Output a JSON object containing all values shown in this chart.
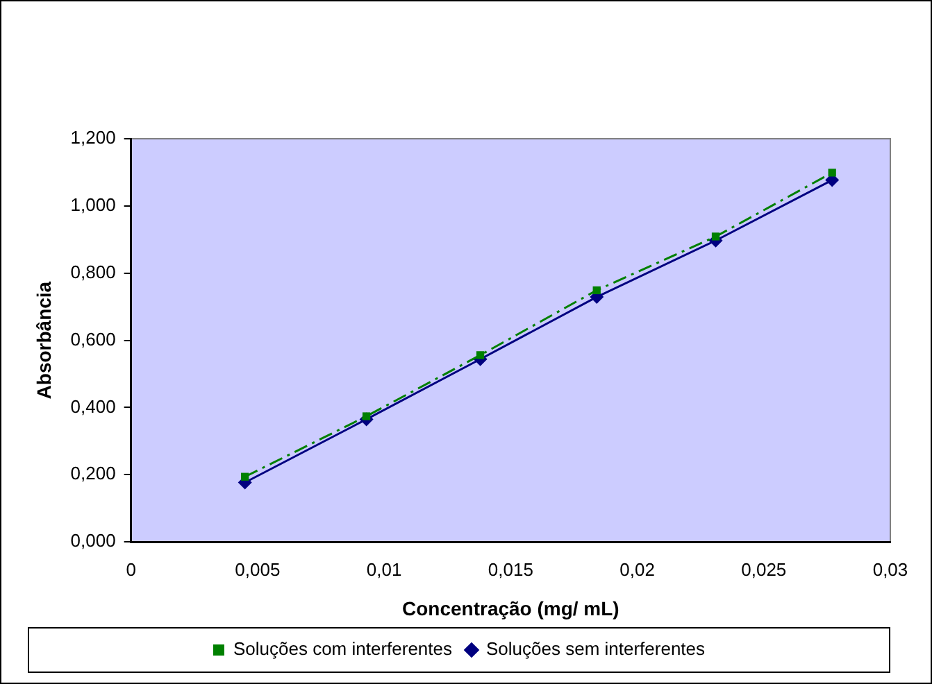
{
  "chart_data": {
    "type": "line",
    "xlabel": "Concentração (mg/ mL)",
    "ylabel": "Absorbância",
    "xlim": [
      0,
      0.03
    ],
    "xticks": [
      0,
      {
        "value": 0.005,
        "label": "0,005"
      },
      {
        "value": 0.01,
        "label": "0,01"
      },
      {
        "value": 0.015,
        "label": "0,015"
      },
      {
        "value": 0.02,
        "label": "0,02"
      },
      {
        "value": 0.025,
        "label": "0,025"
      },
      {
        "value": 0.03,
        "label": "0,03"
      }
    ],
    "ylim": [
      0,
      1.2
    ],
    "yticks": [
      {
        "value": 0,
        "label": "0,000"
      },
      {
        "value": 0.2,
        "label": "0,200"
      },
      {
        "value": 0.4,
        "label": "0,400"
      },
      {
        "value": 0.6,
        "label": "0,600"
      },
      {
        "value": 0.8,
        "label": "0,800"
      },
      {
        "value": 1.0,
        "label": "1,000"
      },
      {
        "value": 1.2,
        "label": "1,200"
      }
    ],
    "x": [
      0.0045,
      0.0093,
      0.0138,
      0.0184,
      0.0231,
      0.0277
    ],
    "series": [
      {
        "name": "Soluções sem interferentes",
        "color": "#000080",
        "values": [
          0.177,
          0.365,
          0.544,
          0.729,
          0.897,
          1.077
        ],
        "marker": "diamond",
        "line_style": "solid"
      },
      {
        "name": "Soluções com interferentes",
        "color": "#008000",
        "values": [
          0.194,
          0.374,
          0.556,
          0.749,
          0.909,
          1.099
        ],
        "marker": "square",
        "line_style": "dashed"
      }
    ],
    "grid": false,
    "legend": "bottom"
  }
}
